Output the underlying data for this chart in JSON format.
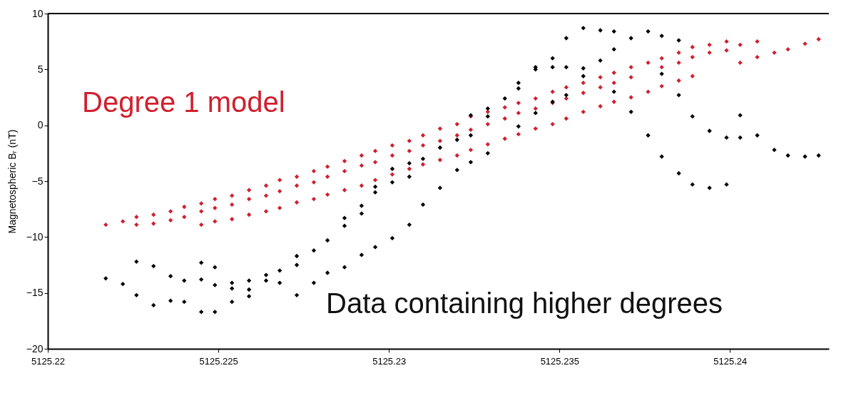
{
  "chart_data": {
    "type": "scatter",
    "ylabel": "Magnetospheric Bᵣ (nT)",
    "xlim": [
      5125.22,
      5125.2429
    ],
    "xticks": [
      5125.22,
      5125.225,
      5125.23,
      5125.235,
      5125.24
    ],
    "ylim": [
      -20,
      10
    ],
    "yticks": [
      -20,
      -15,
      -10,
      -5,
      0,
      5,
      10
    ],
    "grid": false,
    "marker": "diamond",
    "series": [
      {
        "name": "Degree 1 model",
        "color": "#d0202e",
        "x": [
          5125.2217,
          5125.2222,
          5125.2226,
          5125.2226,
          5125.2231,
          5125.2231,
          5125.2236,
          5125.2236,
          5125.224,
          5125.224,
          5125.2245,
          5125.2245,
          5125.2245,
          5125.2249,
          5125.2249,
          5125.2249,
          5125.2254,
          5125.2254,
          5125.2254,
          5125.2259,
          5125.2259,
          5125.2259,
          5125.2264,
          5125.2264,
          5125.2264,
          5125.2268,
          5125.2268,
          5125.2268,
          5125.2273,
          5125.2273,
          5125.2273,
          5125.2278,
          5125.2278,
          5125.2278,
          5125.2282,
          5125.2282,
          5125.2282,
          5125.2287,
          5125.2287,
          5125.2287,
          5125.2292,
          5125.2292,
          5125.2292,
          5125.2296,
          5125.2296,
          5125.2296,
          5125.2301,
          5125.2301,
          5125.2301,
          5125.2306,
          5125.2306,
          5125.2306,
          5125.231,
          5125.231,
          5125.231,
          5125.2315,
          5125.2315,
          5125.2315,
          5125.232,
          5125.232,
          5125.232,
          5125.2324,
          5125.2324,
          5125.2324,
          5125.2329,
          5125.2329,
          5125.2329,
          5125.2334,
          5125.2334,
          5125.2334,
          5125.2338,
          5125.2338,
          5125.2338,
          5125.2343,
          5125.2343,
          5125.2343,
          5125.2348,
          5125.2348,
          5125.2348,
          5125.2352,
          5125.2352,
          5125.2352,
          5125.2357,
          5125.2357,
          5125.2357,
          5125.2362,
          5125.2362,
          5125.2362,
          5125.2366,
          5125.2366,
          5125.2366,
          5125.2371,
          5125.2371,
          5125.2371,
          5125.2376,
          5125.2376,
          5125.238,
          5125.238,
          5125.238,
          5125.2385,
          5125.2385,
          5125.2385,
          5125.2389,
          5125.2389,
          5125.2389,
          5125.2394,
          5125.2394,
          5125.2399,
          5125.2399,
          5125.2403,
          5125.2403,
          5125.2408,
          5125.2408,
          5125.2413,
          5125.2417,
          5125.2422,
          5125.2426
        ],
        "values": [
          -8.9,
          -8.6,
          -8.2,
          -8.9,
          -8.0,
          -8.8,
          -7.7,
          -8.5,
          -7.3,
          -8.2,
          -7.0,
          -7.7,
          -8.9,
          -6.6,
          -7.4,
          -8.6,
          -6.3,
          -7.1,
          -8.4,
          -5.8,
          -6.6,
          -8.0,
          -5.4,
          -6.3,
          -7.7,
          -4.9,
          -5.9,
          -7.4,
          -4.6,
          -5.4,
          -6.9,
          -4.1,
          -5.1,
          -6.6,
          -3.7,
          -4.6,
          -6.2,
          -3.2,
          -4.1,
          -5.8,
          -2.7,
          -3.6,
          -5.4,
          -2.3,
          -3.3,
          -4.9,
          -1.8,
          -2.7,
          -4.4,
          -1.4,
          -2.3,
          -3.9,
          -0.9,
          -1.8,
          -3.5,
          -0.3,
          -1.4,
          -3.1,
          0.1,
          -0.9,
          -2.7,
          0.8,
          -0.4,
          -2.2,
          1.2,
          0.1,
          -1.7,
          1.6,
          0.6,
          -1.2,
          2.0,
          1.1,
          -0.8,
          2.4,
          1.5,
          -0.3,
          3.0,
          2.0,
          0.1,
          3.4,
          2.4,
          0.6,
          3.8,
          2.9,
          1.2,
          4.3,
          3.4,
          1.7,
          4.7,
          3.8,
          2.1,
          5.2,
          4.3,
          2.5,
          5.6,
          3.0,
          6.0,
          5.2,
          3.5,
          6.5,
          5.6,
          4.0,
          7.0,
          6.1,
          4.4,
          7.2,
          6.5,
          7.5,
          6.7,
          7.2,
          5.6,
          7.5,
          6.1,
          6.5,
          6.8,
          7.3,
          7.7
        ]
      },
      {
        "name": "Data containing higher degrees",
        "color": "#000000",
        "x": [
          5125.2217,
          5125.2222,
          5125.2226,
          5125.2226,
          5125.2231,
          5125.2231,
          5125.2236,
          5125.2236,
          5125.224,
          5125.224,
          5125.2245,
          5125.2245,
          5125.2245,
          5125.2249,
          5125.2249,
          5125.2249,
          5125.2254,
          5125.2254,
          5125.2254,
          5125.2259,
          5125.2259,
          5125.2259,
          5125.2264,
          5125.2264,
          5125.2268,
          5125.2268,
          5125.2273,
          5125.2273,
          5125.2273,
          5125.2278,
          5125.2278,
          5125.2282,
          5125.2282,
          5125.2287,
          5125.2287,
          5125.2287,
          5125.2292,
          5125.2292,
          5125.2292,
          5125.2296,
          5125.2296,
          5125.2296,
          5125.2301,
          5125.2301,
          5125.2301,
          5125.2306,
          5125.2306,
          5125.2306,
          5125.231,
          5125.231,
          5125.2315,
          5125.2315,
          5125.232,
          5125.232,
          5125.2324,
          5125.2324,
          5125.2324,
          5125.2329,
          5125.2329,
          5125.2329,
          5125.2334,
          5125.2338,
          5125.2338,
          5125.2338,
          5125.2343,
          5125.2343,
          5125.2343,
          5125.2348,
          5125.2348,
          5125.2348,
          5125.2352,
          5125.2352,
          5125.2352,
          5125.2357,
          5125.2357,
          5125.2357,
          5125.2362,
          5125.2362,
          5125.2366,
          5125.2366,
          5125.2366,
          5125.2371,
          5125.2371,
          5125.2376,
          5125.2376,
          5125.238,
          5125.238,
          5125.238,
          5125.2385,
          5125.2385,
          5125.2385,
          5125.2389,
          5125.2389,
          5125.2394,
          5125.2394,
          5125.2399,
          5125.2399,
          5125.2403,
          5125.2403,
          5125.2408,
          5125.2413,
          5125.2417,
          5125.2422,
          5125.2426
        ],
        "values": [
          -13.7,
          -14.2,
          -12.2,
          -15.2,
          -12.6,
          -16.1,
          -13.5,
          -15.7,
          -13.9,
          -15.8,
          -12.3,
          -13.8,
          -16.7,
          -12.7,
          -14.3,
          -16.7,
          -14.1,
          -14.6,
          -15.8,
          -13.9,
          -14.7,
          -15.3,
          -13.4,
          -13.9,
          -13.0,
          -14.1,
          -11.7,
          -12.5,
          -15.2,
          -11.2,
          -14.1,
          -10.3,
          -13.2,
          -8.3,
          -9.0,
          -12.7,
          -7.2,
          -7.9,
          -11.6,
          -5.5,
          -6.0,
          -10.9,
          -3.9,
          -5.1,
          -10.1,
          -3.4,
          -4.6,
          -8.9,
          -3.0,
          -7.1,
          -2.0,
          -5.6,
          -1.3,
          -4.0,
          0.9,
          -0.9,
          -3.3,
          1.5,
          0.8,
          -2.5,
          2.4,
          3.8,
          3.3,
          -0.1,
          5.2,
          5.0,
          1.1,
          6.0,
          5.2,
          2.1,
          7.8,
          5.2,
          2.7,
          8.7,
          5.1,
          4.4,
          8.5,
          5.8,
          8.4,
          6.8,
          3.0,
          7.8,
          1.2,
          8.4,
          -0.9,
          8.0,
          4.6,
          -2.8,
          7.6,
          2.7,
          -4.3,
          0.8,
          -5.3,
          -0.5,
          -5.6,
          -1.1,
          -5.3,
          0.9,
          -1.1,
          -0.9,
          -2.2,
          -2.7,
          -2.8,
          -2.7
        ]
      }
    ]
  }
}
